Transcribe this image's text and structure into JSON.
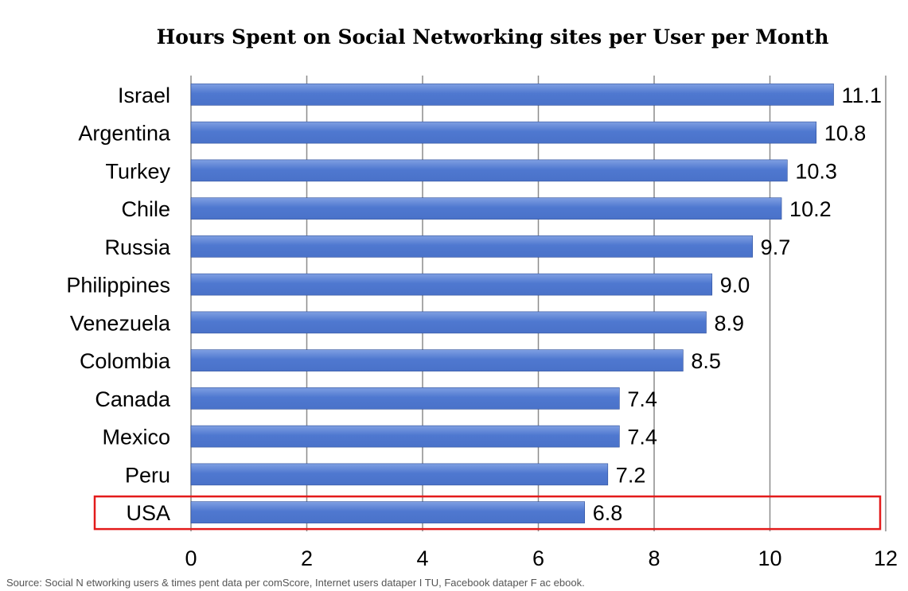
{
  "chart_data": {
    "type": "bar",
    "orientation": "horizontal",
    "title": "Hours Spent on Social Networking sites per User per Month",
    "categories": [
      "Israel",
      "Argentina",
      "Turkey",
      "Chile",
      "Russia",
      "Philippines",
      "Venezuela",
      "Colombia",
      "Canada",
      "Mexico",
      "Peru",
      "USA"
    ],
    "values": [
      11.1,
      10.8,
      10.3,
      10.2,
      9.7,
      9.0,
      8.9,
      8.5,
      7.4,
      7.4,
      7.2,
      6.8
    ],
    "value_labels": [
      "11.1",
      "10.8",
      "10.3",
      "10.2",
      "9.7",
      "9.0",
      "8.9",
      "8.5",
      "7.4",
      "7.4",
      "7.2",
      "6.8"
    ],
    "xlim": [
      0,
      12
    ],
    "xticks": [
      "0",
      "2",
      "4",
      "6",
      "8",
      "10",
      "12"
    ],
    "xlabel": "",
    "ylabel": "",
    "grid": true,
    "highlighted_category": "USA",
    "highlight_color": "#e31b1b",
    "bar_color": "#4a72c9",
    "bar_color_light": "#7f9fe2"
  },
  "source_note": "Source: Social N etworking users & times pent data per comScore, Internet users dataper I TU, Facebook dataper F ac ebook."
}
